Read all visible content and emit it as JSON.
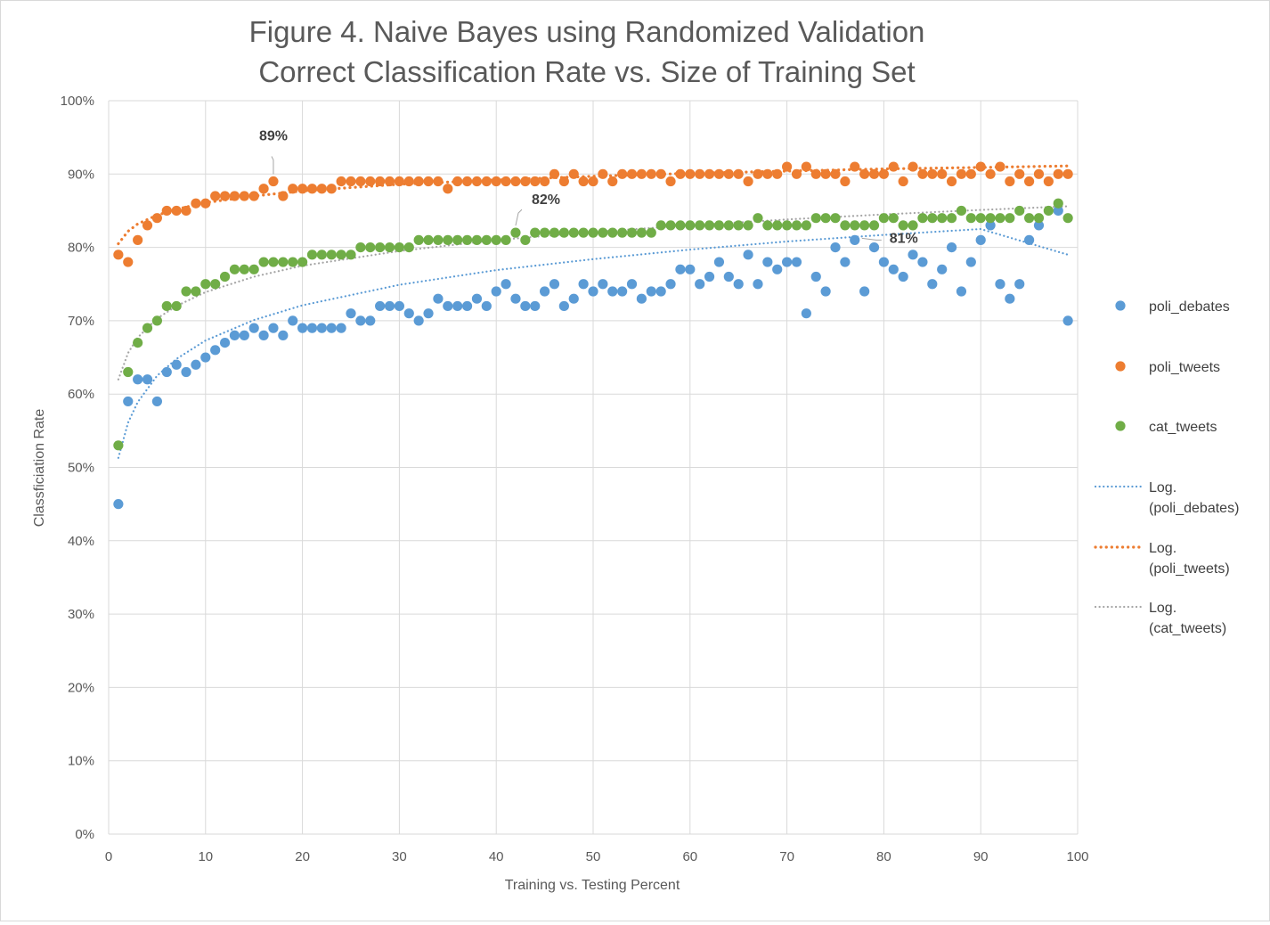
{
  "chart_data": {
    "type": "scatter",
    "title": "Figure 4. Naive Bayes using Randomized Validation",
    "subtitle": "Correct Classification Rate vs. Size of Training Set",
    "xlabel": "Training vs. Testing Percent",
    "ylabel": "Classficiation Rate",
    "xlim": [
      0,
      100
    ],
    "ylim": [
      0,
      100
    ],
    "x_ticks": [
      "0",
      "10",
      "20",
      "30",
      "40",
      "50",
      "60",
      "70",
      "80",
      "90",
      "100"
    ],
    "y_ticks": [
      "0%",
      "10%",
      "20%",
      "30%",
      "40%",
      "50%",
      "60%",
      "70%",
      "80%",
      "90%",
      "100%"
    ],
    "grid": true,
    "legend_position": "right",
    "series": [
      {
        "name": "poli_debates",
        "color": "#5b9bd5",
        "x": [
          1,
          2,
          3,
          4,
          5,
          6,
          7,
          8,
          9,
          10,
          11,
          12,
          13,
          14,
          15,
          16,
          17,
          18,
          19,
          20,
          21,
          22,
          23,
          24,
          25,
          26,
          27,
          28,
          29,
          30,
          31,
          32,
          33,
          34,
          35,
          36,
          37,
          38,
          39,
          40,
          41,
          42,
          43,
          44,
          45,
          46,
          47,
          48,
          49,
          50,
          51,
          52,
          53,
          54,
          55,
          56,
          57,
          58,
          59,
          60,
          61,
          62,
          63,
          64,
          65,
          66,
          67,
          68,
          69,
          70,
          71,
          72,
          73,
          74,
          75,
          76,
          77,
          78,
          79,
          80,
          81,
          82,
          83,
          84,
          85,
          86,
          87,
          88,
          89,
          90,
          91,
          92,
          93,
          94,
          95,
          96,
          98,
          99
        ],
        "y": [
          45,
          59,
          62,
          62,
          59,
          63,
          64,
          63,
          64,
          65,
          66,
          67,
          68,
          68,
          69,
          68,
          69,
          68,
          70,
          69,
          69,
          69,
          69,
          69,
          71,
          70,
          70,
          72,
          72,
          72,
          71,
          70,
          71,
          73,
          72,
          72,
          72,
          73,
          72,
          74,
          75,
          73,
          72,
          72,
          74,
          75,
          72,
          73,
          75,
          74,
          75,
          74,
          74,
          75,
          73,
          74,
          74,
          75,
          77,
          77,
          75,
          76,
          78,
          76,
          75,
          79,
          75,
          78,
          77,
          78,
          78,
          71,
          76,
          74,
          80,
          78,
          81,
          74,
          80,
          78,
          77,
          76,
          79,
          78,
          75,
          77,
          80,
          74,
          78,
          81,
          83,
          75,
          73,
          75,
          81,
          83,
          85,
          70
        ]
      },
      {
        "name": "poli_tweets",
        "color": "#ed7d31",
        "x": [
          1,
          2,
          3,
          4,
          5,
          6,
          7,
          8,
          9,
          10,
          11,
          12,
          13,
          14,
          15,
          16,
          17,
          18,
          19,
          20,
          21,
          22,
          23,
          24,
          25,
          26,
          27,
          28,
          29,
          30,
          31,
          32,
          33,
          34,
          35,
          36,
          37,
          38,
          39,
          40,
          41,
          42,
          43,
          44,
          45,
          46,
          47,
          48,
          49,
          50,
          51,
          52,
          53,
          54,
          55,
          56,
          57,
          58,
          59,
          60,
          61,
          62,
          63,
          64,
          65,
          66,
          67,
          68,
          69,
          70,
          71,
          72,
          73,
          74,
          75,
          76,
          77,
          78,
          79,
          80,
          81,
          82,
          83,
          84,
          85,
          86,
          87,
          88,
          89,
          90,
          91,
          92,
          93,
          94,
          95,
          96,
          97,
          98,
          99
        ],
        "y": [
          79,
          78,
          81,
          83,
          84,
          85,
          85,
          85,
          86,
          86,
          87,
          87,
          87,
          87,
          87,
          88,
          89,
          87,
          88,
          88,
          88,
          88,
          88,
          89,
          89,
          89,
          89,
          89,
          89,
          89,
          89,
          89,
          89,
          89,
          88,
          89,
          89,
          89,
          89,
          89,
          89,
          89,
          89,
          89,
          89,
          90,
          89,
          90,
          89,
          89,
          90,
          89,
          90,
          90,
          90,
          90,
          90,
          89,
          90,
          90,
          90,
          90,
          90,
          90,
          90,
          89,
          90,
          90,
          90,
          91,
          90,
          91,
          90,
          90,
          90,
          89,
          91,
          90,
          90,
          90,
          91,
          89,
          91,
          90,
          90,
          90,
          89,
          90,
          90,
          91,
          90,
          91,
          89,
          90,
          89,
          90,
          89,
          90,
          90
        ]
      },
      {
        "name": "cat_tweets",
        "color": "#70ad47",
        "x": [
          1,
          2,
          3,
          4,
          5,
          6,
          7,
          8,
          9,
          10,
          11,
          12,
          13,
          14,
          15,
          16,
          17,
          18,
          19,
          20,
          21,
          22,
          23,
          24,
          25,
          26,
          27,
          28,
          29,
          30,
          31,
          32,
          33,
          34,
          35,
          36,
          37,
          38,
          39,
          40,
          41,
          42,
          43,
          44,
          45,
          46,
          47,
          48,
          49,
          50,
          51,
          52,
          53,
          54,
          55,
          56,
          57,
          58,
          59,
          60,
          61,
          62,
          63,
          64,
          65,
          66,
          67,
          68,
          69,
          70,
          71,
          72,
          73,
          74,
          75,
          76,
          77,
          78,
          79,
          80,
          81,
          82,
          83,
          84,
          85,
          86,
          87,
          88,
          89,
          90,
          91,
          92,
          93,
          94,
          95,
          96,
          97,
          98,
          99
        ],
        "y": [
          53,
          63,
          67,
          69,
          70,
          72,
          72,
          74,
          74,
          75,
          75,
          76,
          77,
          77,
          77,
          78,
          78,
          78,
          78,
          78,
          79,
          79,
          79,
          79,
          79,
          80,
          80,
          80,
          80,
          80,
          80,
          81,
          81,
          81,
          81,
          81,
          81,
          81,
          81,
          81,
          81,
          82,
          81,
          82,
          82,
          82,
          82,
          82,
          82,
          82,
          82,
          82,
          82,
          82,
          82,
          82,
          83,
          83,
          83,
          83,
          83,
          83,
          83,
          83,
          83,
          83,
          84,
          83,
          83,
          83,
          83,
          83,
          84,
          84,
          84,
          83,
          83,
          83,
          83,
          84,
          84,
          83,
          83,
          84,
          84,
          84,
          84,
          85,
          84,
          84,
          84,
          84,
          84,
          85,
          84,
          84,
          85,
          86,
          84
        ]
      },
      {
        "name": "Log. (poli_debates)",
        "trendline_of": "poli_debates",
        "color": "#5b9bd5",
        "x": [
          1,
          2,
          3,
          5,
          7,
          10,
          15,
          20,
          30,
          40,
          50,
          60,
          70,
          80,
          90,
          99
        ],
        "y": [
          51.3,
          56.1,
          58.9,
          62.5,
          64.8,
          67.3,
          70.1,
          72.1,
          74.9,
          76.9,
          78.4,
          79.7,
          80.8,
          81.7,
          82.5,
          79.0
        ]
      },
      {
        "name": "Log. (poli_tweets)",
        "trendline_of": "poli_tweets",
        "color": "#ed7d31",
        "x": [
          1,
          2,
          3,
          5,
          7,
          10,
          15,
          20,
          30,
          40,
          50,
          60,
          70,
          80,
          90,
          99
        ],
        "y": [
          80.5,
          82.2,
          83.2,
          84.4,
          85.2,
          86.1,
          87.0,
          87.7,
          88.6,
          89.2,
          89.7,
          90.1,
          90.4,
          90.7,
          90.9,
          91.1
        ]
      },
      {
        "name": "Log. (cat_tweets)",
        "trendline_of": "cat_tweets",
        "color": "#a5a5a5",
        "x": [
          1,
          2,
          3,
          5,
          7,
          10,
          15,
          20,
          30,
          40,
          50,
          60,
          70,
          80,
          90,
          99
        ],
        "y": [
          62.0,
          65.6,
          67.7,
          70.3,
          72.0,
          73.9,
          76.0,
          77.5,
          79.5,
          81.0,
          82.1,
          83.0,
          83.8,
          84.5,
          85.1,
          85.6
        ]
      }
    ],
    "annotations": [
      {
        "text": "89%",
        "series": "poli_tweets",
        "x": 17,
        "y": 89
      },
      {
        "text": "82%",
        "series": "cat_tweets",
        "x": 42,
        "y": 82
      },
      {
        "text": "81%",
        "series": "poli_debates",
        "x": 77,
        "y": 81
      }
    ]
  },
  "legend": {
    "items": [
      {
        "label": "poli_debates",
        "kind": "marker",
        "color": "#5b9bd5"
      },
      {
        "label": "poli_tweets",
        "kind": "marker",
        "color": "#ed7d31"
      },
      {
        "label": "cat_tweets",
        "kind": "marker",
        "color": "#70ad47"
      },
      {
        "label": "Log. (poli_debates)",
        "line1": "Log.",
        "line2": "(poli_debates)",
        "kind": "dotted-line",
        "color": "#5b9bd5"
      },
      {
        "label": "Log. (poli_tweets)",
        "line1": "Log.",
        "line2": "(poli_tweets)",
        "kind": "dotted-line",
        "color": "#ed7d31"
      },
      {
        "label": "Log. (cat_tweets)",
        "line1": "Log.",
        "line2": "(cat_tweets)",
        "kind": "dotted-line",
        "color": "#a5a5a5"
      }
    ]
  }
}
